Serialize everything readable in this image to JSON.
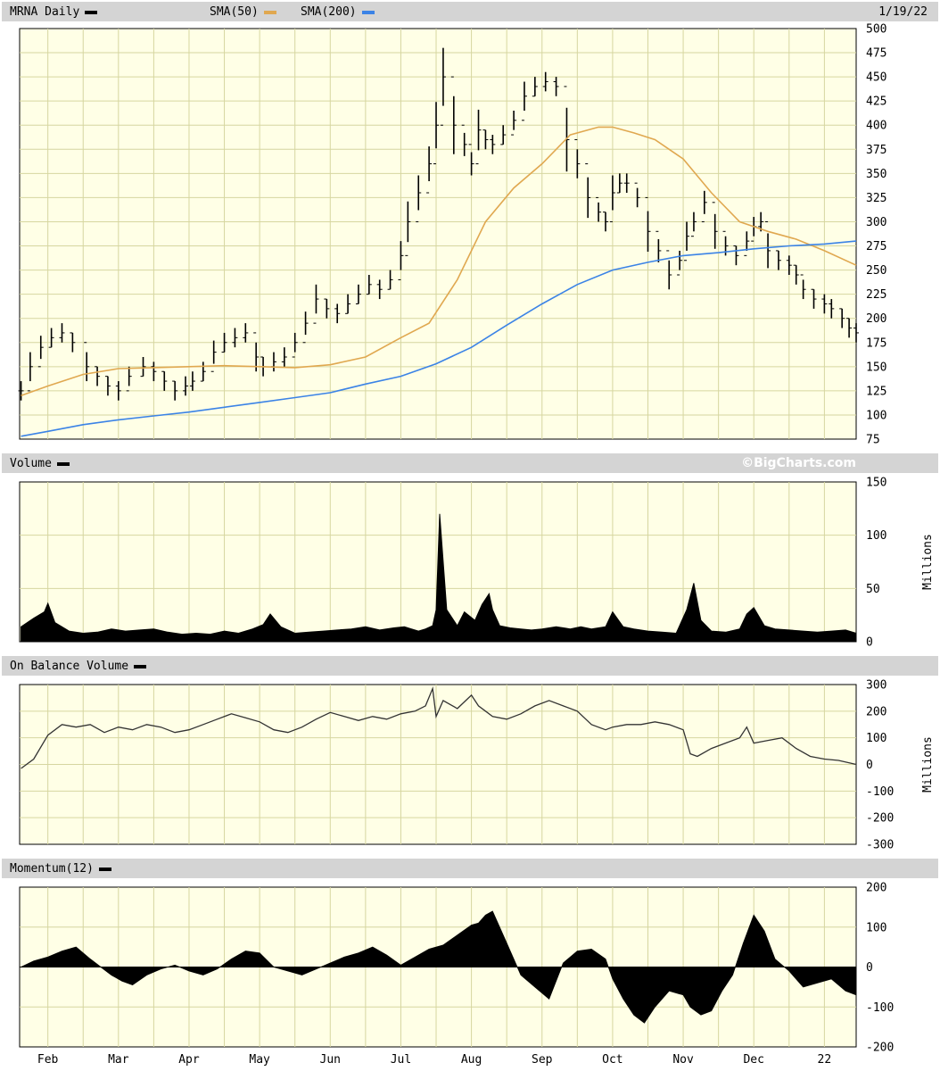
{
  "colors": {
    "panel_bg": "#ffffe6",
    "grid": "#d6d6a0",
    "header_bg": "#d4d4d4",
    "price": "#000000",
    "sma50": "#e0a850",
    "sma200": "#3b83e6"
  },
  "header": {
    "symbol_label": "MRNA Daily",
    "sma50_label": "SMA(50)",
    "sma200_label": "SMA(200)",
    "date": "1/19/22"
  },
  "volume_header": {
    "label": "Volume",
    "credit": "©BigCharts.com"
  },
  "obv_header": {
    "label": "On Balance Volume"
  },
  "momentum_header": {
    "label": "Momentum(12)"
  },
  "units": {
    "volume": "Millions",
    "obv": "Millions"
  },
  "x_axis": {
    "labels": [
      "Feb",
      "Mar",
      "Apr",
      "May",
      "Jun",
      "Jul",
      "Aug",
      "Sep",
      "Oct",
      "Nov",
      "Dec",
      "22"
    ],
    "positions": [
      1.0,
      2.0,
      3.0,
      4.0,
      5.0,
      6.0,
      7.0,
      8.0,
      9.0,
      10.0,
      11.0,
      12.0
    ]
  },
  "chart_data": [
    {
      "type": "line",
      "panel": "price",
      "ylim": [
        75,
        500
      ],
      "yticks": [
        75,
        100,
        125,
        150,
        175,
        200,
        225,
        250,
        275,
        300,
        325,
        350,
        375,
        400,
        425,
        450,
        475,
        500
      ],
      "xlim": [
        0.6,
        12.45
      ],
      "series": [
        {
          "name": "MRNA Daily",
          "style": "ohlc-bars",
          "x": [
            0.62,
            0.75,
            0.9,
            1.05,
            1.2,
            1.35,
            1.55,
            1.7,
            1.85,
            2.0,
            2.15,
            2.35,
            2.5,
            2.65,
            2.8,
            2.95,
            3.05,
            3.2,
            3.35,
            3.5,
            3.65,
            3.8,
            3.95,
            4.05,
            4.2,
            4.35,
            4.5,
            4.65,
            4.8,
            4.95,
            5.1,
            5.25,
            5.4,
            5.55,
            5.7,
            5.85,
            6.0,
            6.1,
            6.25,
            6.4,
            6.5,
            6.6,
            6.75,
            6.9,
            7.0,
            7.1,
            7.2,
            7.3,
            7.45,
            7.6,
            7.75,
            7.9,
            8.05,
            8.2,
            8.35,
            8.5,
            8.65,
            8.8,
            8.9,
            9.0,
            9.1,
            9.2,
            9.35,
            9.5,
            9.65,
            9.8,
            9.95,
            10.05,
            10.15,
            10.3,
            10.45,
            10.6,
            10.75,
            10.9,
            11.0,
            11.1,
            11.2,
            11.35,
            11.5,
            11.6,
            11.7,
            11.85,
            12.0,
            12.1,
            12.25,
            12.35,
            12.45
          ],
          "y": [
            125,
            150,
            170,
            180,
            185,
            175,
            150,
            140,
            130,
            125,
            140,
            150,
            145,
            135,
            125,
            130,
            135,
            145,
            165,
            175,
            180,
            185,
            160,
            150,
            155,
            160,
            175,
            195,
            220,
            210,
            205,
            215,
            225,
            235,
            230,
            240,
            265,
            300,
            330,
            360,
            400,
            450,
            400,
            380,
            360,
            395,
            385,
            380,
            390,
            405,
            430,
            440,
            445,
            440,
            385,
            360,
            325,
            310,
            300,
            330,
            340,
            340,
            325,
            290,
            270,
            245,
            260,
            285,
            300,
            320,
            290,
            275,
            265,
            280,
            295,
            300,
            270,
            260,
            255,
            245,
            230,
            220,
            215,
            210,
            200,
            190,
            185
          ]
        },
        {
          "name": "SMA(50)",
          "x": [
            0.62,
            1.0,
            1.5,
            2.0,
            2.5,
            3.0,
            3.5,
            4.0,
            4.5,
            5.0,
            5.5,
            6.0,
            6.4,
            6.8,
            7.2,
            7.6,
            8.0,
            8.4,
            8.8,
            9.0,
            9.3,
            9.6,
            10.0,
            10.4,
            10.8,
            11.2,
            11.6,
            12.0,
            12.45
          ],
          "y": [
            120,
            130,
            142,
            148,
            149,
            150,
            151,
            150,
            149,
            152,
            160,
            180,
            195,
            240,
            300,
            335,
            360,
            390,
            398,
            398,
            392,
            385,
            365,
            330,
            300,
            290,
            282,
            270,
            255
          ]
        },
        {
          "name": "SMA(200)",
          "x": [
            0.62,
            1.0,
            1.5,
            2.0,
            2.5,
            3.0,
            3.5,
            4.0,
            4.5,
            5.0,
            5.5,
            6.0,
            6.5,
            7.0,
            7.5,
            8.0,
            8.5,
            9.0,
            9.5,
            10.0,
            10.5,
            11.0,
            11.5,
            12.0,
            12.45
          ],
          "y": [
            78,
            83,
            90,
            95,
            99,
            103,
            108,
            113,
            118,
            123,
            132,
            140,
            153,
            170,
            193,
            215,
            235,
            250,
            258,
            265,
            268,
            272,
            275,
            277,
            280
          ]
        }
      ]
    },
    {
      "type": "area",
      "panel": "volume",
      "ylim": [
        0,
        150
      ],
      "yticks": [
        0,
        50,
        100,
        150
      ],
      "ylabel": "Millions",
      "xlim": [
        0.6,
        12.45
      ],
      "x": [
        0.62,
        0.8,
        0.95,
        1.0,
        1.1,
        1.3,
        1.5,
        1.7,
        1.9,
        2.1,
        2.3,
        2.5,
        2.7,
        2.9,
        3.1,
        3.3,
        3.5,
        3.7,
        3.9,
        4.05,
        4.15,
        4.3,
        4.5,
        4.7,
        4.9,
        5.1,
        5.3,
        5.5,
        5.7,
        5.9,
        6.05,
        6.15,
        6.25,
        6.35,
        6.45,
        6.5,
        6.55,
        6.65,
        6.8,
        6.9,
        7.05,
        7.15,
        7.25,
        7.3,
        7.4,
        7.55,
        7.7,
        7.85,
        8.0,
        8.2,
        8.4,
        8.55,
        8.7,
        8.9,
        9.0,
        9.15,
        9.3,
        9.5,
        9.7,
        9.9,
        10.05,
        10.15,
        10.25,
        10.4,
        10.6,
        10.8,
        10.9,
        11.0,
        11.15,
        11.3,
        11.5,
        11.7,
        11.9,
        12.1,
        12.3,
        12.45
      ],
      "values": [
        14,
        22,
        28,
        36,
        18,
        10,
        8,
        9,
        12,
        10,
        11,
        12,
        9,
        7,
        8,
        7,
        10,
        8,
        12,
        16,
        26,
        14,
        8,
        9,
        10,
        11,
        12,
        14,
        11,
        13,
        14,
        12,
        10,
        12,
        15,
        30,
        120,
        30,
        15,
        28,
        20,
        35,
        45,
        30,
        15,
        13,
        12,
        11,
        12,
        14,
        12,
        14,
        12,
        14,
        28,
        14,
        12,
        10,
        9,
        8,
        30,
        55,
        20,
        10,
        9,
        12,
        26,
        32,
        15,
        12,
        11,
        10,
        9,
        10,
        11,
        8
      ]
    },
    {
      "type": "line",
      "panel": "obv",
      "ylim": [
        -300,
        300
      ],
      "yticks": [
        -300,
        -200,
        -100,
        0,
        100,
        200,
        300
      ],
      "ylabel": "Millions",
      "xlim": [
        0.6,
        12.45
      ],
      "x": [
        0.62,
        0.8,
        1.0,
        1.2,
        1.4,
        1.6,
        1.8,
        2.0,
        2.2,
        2.4,
        2.6,
        2.8,
        3.0,
        3.2,
        3.4,
        3.6,
        3.8,
        4.0,
        4.2,
        4.4,
        4.6,
        4.8,
        5.0,
        5.2,
        5.4,
        5.6,
        5.8,
        6.0,
        6.2,
        6.35,
        6.45,
        6.5,
        6.6,
        6.8,
        7.0,
        7.1,
        7.2,
        7.3,
        7.5,
        7.7,
        7.9,
        8.1,
        8.3,
        8.5,
        8.7,
        8.9,
        9.0,
        9.2,
        9.4,
        9.6,
        9.8,
        10.0,
        10.1,
        10.2,
        10.4,
        10.6,
        10.8,
        10.9,
        11.0,
        11.2,
        11.4,
        11.6,
        11.8,
        12.0,
        12.2,
        12.45
      ],
      "values": [
        -15,
        20,
        110,
        150,
        140,
        150,
        120,
        140,
        130,
        150,
        140,
        120,
        130,
        150,
        170,
        190,
        175,
        160,
        130,
        120,
        140,
        170,
        195,
        180,
        165,
        180,
        170,
        190,
        200,
        220,
        285,
        180,
        240,
        210,
        260,
        220,
        200,
        180,
        170,
        190,
        220,
        240,
        220,
        200,
        150,
        130,
        140,
        150,
        150,
        160,
        150,
        130,
        40,
        30,
        60,
        80,
        100,
        140,
        80,
        90,
        100,
        60,
        30,
        20,
        15,
        0
      ]
    },
    {
      "type": "area",
      "panel": "momentum",
      "ylim": [
        -200,
        200
      ],
      "yticks": [
        -200,
        -100,
        0,
        100,
        200
      ],
      "xlim": [
        0.6,
        12.45
      ],
      "x": [
        0.62,
        0.8,
        1.0,
        1.2,
        1.4,
        1.6,
        1.75,
        1.9,
        2.05,
        2.2,
        2.4,
        2.6,
        2.8,
        3.0,
        3.2,
        3.4,
        3.6,
        3.8,
        4.0,
        4.2,
        4.4,
        4.6,
        4.8,
        5.0,
        5.2,
        5.4,
        5.6,
        5.8,
        6.0,
        6.2,
        6.4,
        6.6,
        6.8,
        7.0,
        7.1,
        7.2,
        7.3,
        7.5,
        7.7,
        7.9,
        8.1,
        8.3,
        8.5,
        8.7,
        8.9,
        9.0,
        9.15,
        9.3,
        9.45,
        9.6,
        9.8,
        10.0,
        10.1,
        10.25,
        10.4,
        10.55,
        10.7,
        10.85,
        11.0,
        11.15,
        11.3,
        11.5,
        11.7,
        11.9,
        12.1,
        12.3,
        12.45
      ],
      "values": [
        0,
        15,
        25,
        40,
        50,
        20,
        0,
        -20,
        -35,
        -45,
        -20,
        -5,
        5,
        -10,
        -20,
        -5,
        20,
        40,
        35,
        0,
        -10,
        -20,
        -5,
        10,
        25,
        35,
        50,
        30,
        5,
        25,
        45,
        55,
        80,
        105,
        110,
        130,
        140,
        60,
        -20,
        -50,
        -80,
        10,
        40,
        45,
        20,
        -30,
        -80,
        -120,
        -140,
        -100,
        -60,
        -70,
        -100,
        -120,
        -110,
        -60,
        -20,
        60,
        130,
        90,
        20,
        -10,
        -50,
        -40,
        -30,
        -60,
        -70
      ]
    }
  ]
}
